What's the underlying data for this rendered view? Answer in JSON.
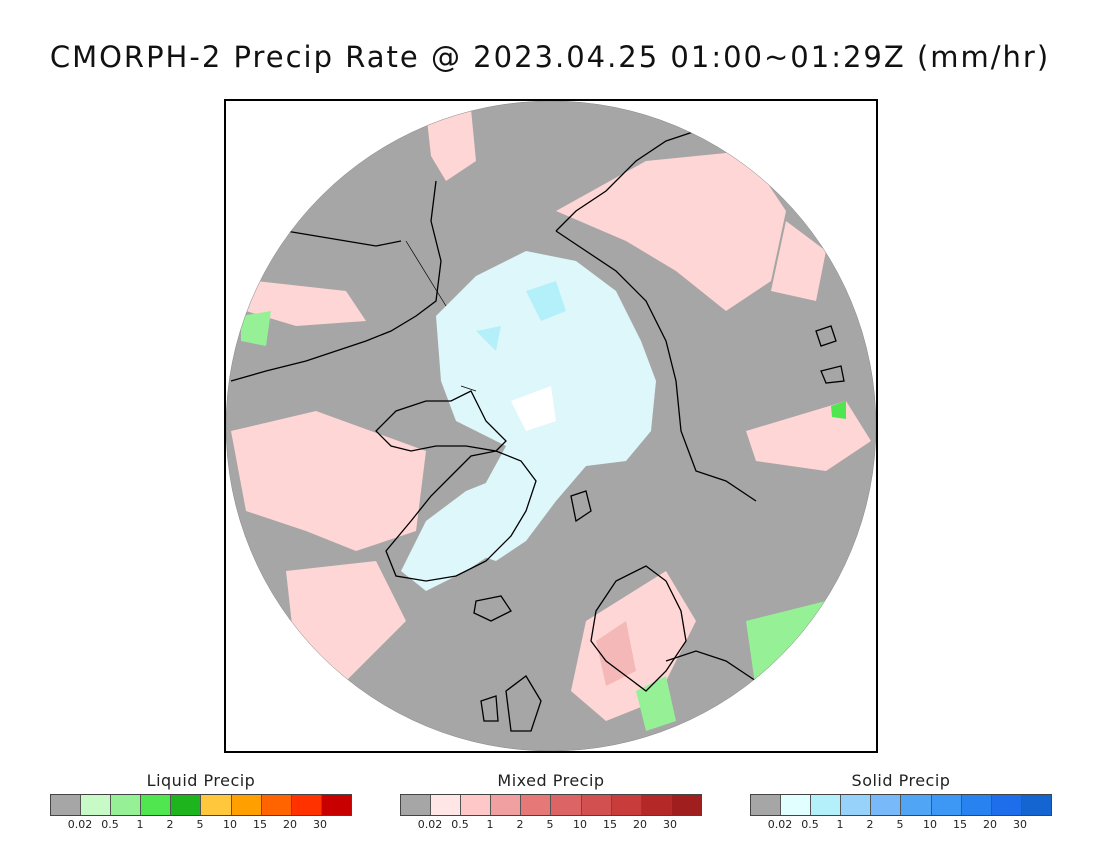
{
  "title": "CMORPH-2 Precip Rate @ 2023.04.25 01:00~01:29Z (mm/hr)",
  "legends": [
    {
      "title": "Liquid Precip",
      "colors": [
        "#a6a6a6",
        "#c8fac8",
        "#96f096",
        "#50e650",
        "#1eb41e",
        "#ffc83c",
        "#ffa000",
        "#ff6400",
        "#ff3200",
        "#c80000"
      ],
      "ticks": [
        "0.02",
        "0.5",
        "1",
        "2",
        "5",
        "10",
        "15",
        "20",
        "30"
      ]
    },
    {
      "title": "Mixed Precip",
      "colors": [
        "#a6a6a6",
        "#ffe6e6",
        "#ffc8c8",
        "#f0a0a0",
        "#e67878",
        "#dc6464",
        "#d25050",
        "#c83c3c",
        "#b42828",
        "#a01e1e"
      ],
      "ticks": [
        "0.02",
        "0.5",
        "1",
        "2",
        "5",
        "10",
        "15",
        "20",
        "30"
      ]
    },
    {
      "title": "Solid Precip",
      "colors": [
        "#a6a6a6",
        "#e1ffff",
        "#b4f0fa",
        "#96d2fa",
        "#78b9fa",
        "#50a5f5",
        "#3c97f5",
        "#2882f0",
        "#1e6eeb",
        "#1464d2"
      ],
      "ticks": [
        "0.02",
        "0.5",
        "1",
        "2",
        "5",
        "10",
        "15",
        "20",
        "30"
      ]
    }
  ],
  "map": {
    "projection": "north polar stereographic",
    "no_precip_color": "#a6a6a6",
    "coast_color": "#000000"
  }
}
